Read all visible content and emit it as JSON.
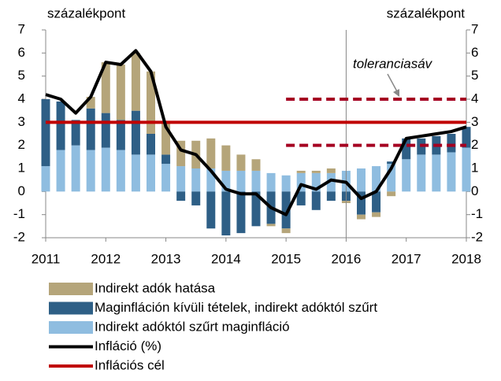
{
  "chart_data": {
    "type": "bar",
    "y_label": "százalékpont",
    "y2_label": "százalékpont",
    "x": [
      2011,
      2011.25,
      2011.5,
      2011.75,
      2012,
      2012.25,
      2012.5,
      2012.75,
      2013,
      2013.25,
      2013.5,
      2013.75,
      2014,
      2014.25,
      2014.5,
      2014.75,
      2015,
      2015.25,
      2015.5,
      2015.75,
      2016,
      2016.25,
      2016.5,
      2016.75,
      2017,
      2017.25,
      2017.5,
      2017.75,
      2018
    ],
    "xlim": [
      2011,
      2018
    ],
    "xticks": [
      2011,
      2012,
      2013,
      2014,
      2015,
      2016,
      2017,
      2018
    ],
    "ylim": [
      -2,
      7
    ],
    "yticks": [
      -2,
      -1,
      0,
      1,
      2,
      3,
      4,
      5,
      6,
      7
    ],
    "y2lim": [
      -2,
      7
    ],
    "y2ticks": [
      -2,
      -1,
      0,
      1,
      2,
      3,
      4,
      5,
      6,
      7
    ],
    "series": [
      {
        "name": "Indirekt adóktól szűrt maginfláció",
        "color": "#8fbde0",
        "values": [
          1.1,
          1.8,
          2.0,
          1.8,
          1.9,
          1.8,
          1.6,
          1.6,
          1.2,
          1.1,
          1.0,
          1.0,
          0.9,
          0.9,
          0.9,
          0.8,
          0.7,
          0.8,
          0.8,
          0.8,
          0.9,
          1.0,
          1.1,
          1.2,
          1.4,
          1.6,
          1.6,
          1.7,
          1.9
        ]
      },
      {
        "name": "Maginfláción kívüli tételek, indirekt adóktól szűrt",
        "color": "#2e5f86",
        "values": [
          2.9,
          2.1,
          1.1,
          1.8,
          1.5,
          1.3,
          1.9,
          0.9,
          0.4,
          -0.4,
          -0.6,
          -1.6,
          -1.9,
          -1.8,
          -1.5,
          -1.4,
          -1.6,
          -0.6,
          -0.8,
          -0.4,
          -0.4,
          -1.0,
          -0.9,
          0.1,
          0.9,
          0.7,
          0.8,
          0.8,
          0.9
        ]
      },
      {
        "name": "Indirekt adók hatása",
        "color": "#b5a57a",
        "values": [
          0,
          0,
          0,
          0.5,
          2.2,
          2.4,
          2.5,
          2.7,
          1.4,
          1.1,
          1.2,
          1.3,
          1.1,
          0.7,
          0.5,
          -0.1,
          -0.2,
          0.1,
          0.1,
          0.2,
          -0.1,
          -0.2,
          -0.2,
          -0.2,
          0,
          0,
          0,
          0,
          0
        ]
      }
    ],
    "lines": [
      {
        "name": "Infláció (%)",
        "color": "#000000",
        "values": [
          4.2,
          4.0,
          3.4,
          4.1,
          5.6,
          5.5,
          6.1,
          5.2,
          2.8,
          1.8,
          1.6,
          0.9,
          0.1,
          -0.1,
          -0.1,
          -0.7,
          -1.0,
          0.3,
          0.1,
          0.5,
          0.4,
          -0.3,
          0.0,
          1.0,
          2.3,
          2.4,
          2.5,
          2.6,
          2.8
        ]
      }
    ],
    "target": {
      "name": "Inflációs cél",
      "value": 3,
      "color": "#c00000"
    },
    "tolerance": {
      "label": "toleranciasáv",
      "values": [
        2,
        4
      ],
      "x": [
        2015,
        2018
      ],
      "color": "#a50021"
    },
    "vline": 2016,
    "legend_order": [
      "series.2",
      "series.1",
      "series.0",
      "lines.0",
      "target"
    ]
  }
}
